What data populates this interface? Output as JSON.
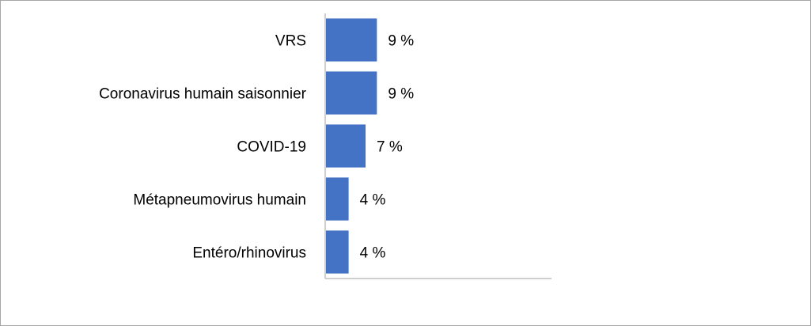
{
  "chart_data": {
    "type": "bar",
    "orientation": "horizontal",
    "categories": [
      "VRS",
      "Coronavirus humain saisonnier",
      "COVID-19",
      "Métapneumovirus humain",
      "Entéro/rhinovirus"
    ],
    "values": [
      9,
      9,
      7,
      4,
      4
    ],
    "data_labels": [
      "9 %",
      "9 %",
      "7 %",
      "4 %",
      "4 %"
    ],
    "xlim": [
      0,
      40
    ],
    "grid": false,
    "legend": "none",
    "bar_color": "#4472c4",
    "axis_color": "#bfbfbf"
  }
}
